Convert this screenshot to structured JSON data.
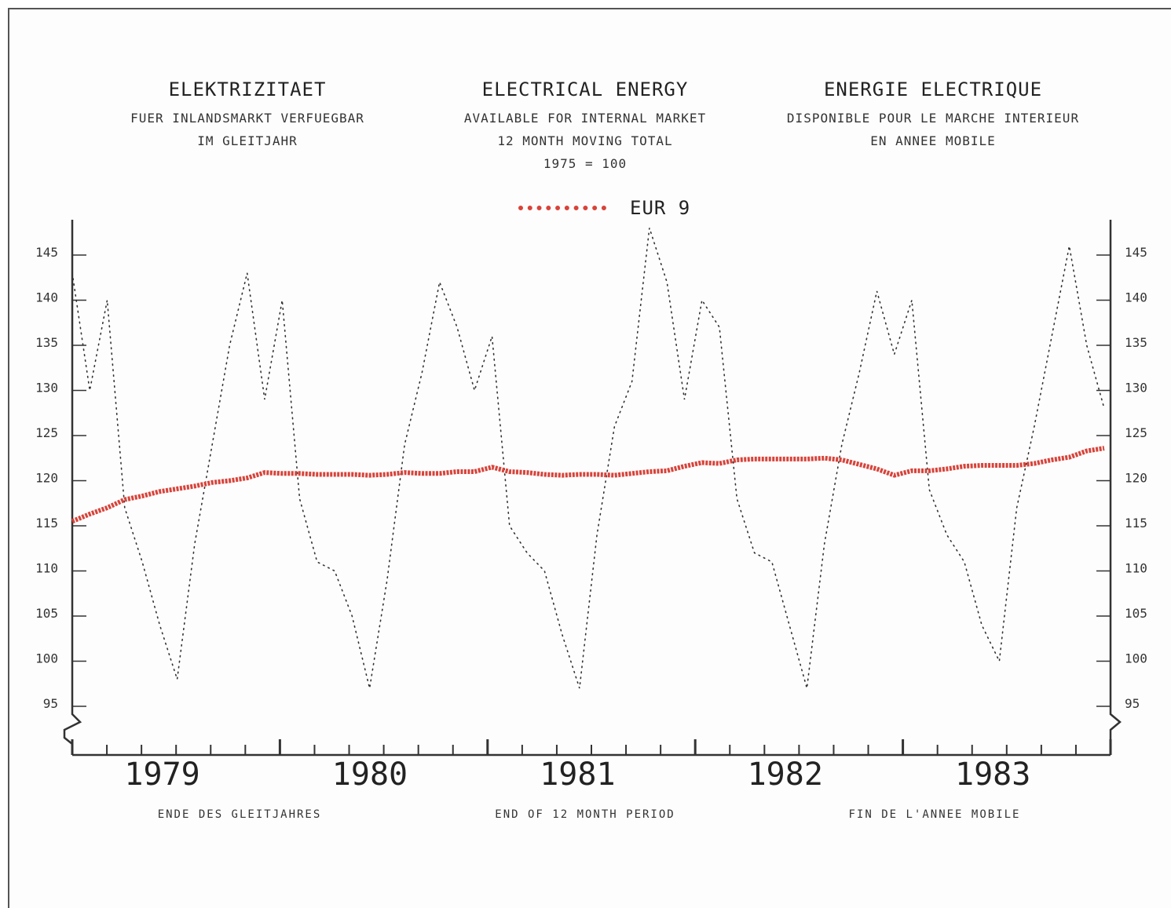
{
  "titles": {
    "de": {
      "title": "ELEKTRIZITAET",
      "line1": "FUER INLANDSMARKT VERFUEGBAR",
      "line2": "IM GLEITJAHR"
    },
    "en": {
      "title": "ELECTRICAL ENERGY",
      "line1": "AVAILABLE FOR INTERNAL MARKET",
      "line2": "12 MONTH MOVING TOTAL",
      "line3": "1975 = 100"
    },
    "fr": {
      "title": "ENERGIE ELECTRIQUE",
      "line1": "DISPONIBLE POUR LE MARCHE INTERIEUR",
      "line2": "EN ANNEE MOBILE"
    }
  },
  "footer": {
    "de": "ENDE DES GLEITJAHRES",
    "en": "END OF 12 MONTH PERIOD",
    "fr": "FIN DE L'ANNEE MOBILE"
  },
  "colors": {
    "series": "#d8433a",
    "monthly": "#333333",
    "axis": "#333333"
  },
  "chart_data": {
    "type": "line",
    "x_unit": "month",
    "x_range": [
      "1978-12",
      "1983-12"
    ],
    "years": [
      "1979",
      "1980",
      "1981",
      "1982",
      "1983"
    ],
    "y_ticks": [
      145,
      140,
      135,
      130,
      125,
      120,
      115,
      110,
      105,
      100,
      95
    ],
    "ylim": [
      93,
      148
    ],
    "y_axis_break": true,
    "legend": {
      "position": "top-center"
    },
    "series": [
      {
        "name": "EUR 9",
        "style": "thick dotted",
        "values": [
          115.5,
          116.3,
          117.0,
          117.9,
          118.3,
          118.8,
          119.1,
          119.4,
          119.8,
          120.0,
          120.3,
          120.9,
          120.8,
          120.8,
          120.7,
          120.7,
          120.7,
          120.6,
          120.7,
          120.9,
          120.8,
          120.8,
          121.0,
          121.0,
          121.5,
          121.0,
          120.9,
          120.7,
          120.6,
          120.7,
          120.7,
          120.6,
          120.8,
          121.0,
          121.1,
          121.6,
          122.0,
          121.9,
          122.3,
          122.4,
          122.4,
          122.4,
          122.4,
          122.5,
          122.3,
          121.8,
          121.3,
          120.6,
          121.1,
          121.1,
          121.3,
          121.6,
          121.7,
          121.7,
          121.7,
          121.9,
          122.3,
          122.6,
          123.3,
          123.6
        ]
      },
      {
        "style": "thin dotted",
        "values": [
          143,
          130,
          140,
          117,
          111,
          104,
          98,
          113,
          124,
          135,
          143,
          129,
          140,
          118,
          111,
          110,
          105,
          97,
          109,
          124,
          132,
          142,
          137,
          130,
          136,
          115,
          112,
          110,
          103,
          97,
          114,
          126,
          131,
          148,
          142,
          129,
          140,
          137,
          118,
          112,
          111,
          104,
          97,
          113,
          124,
          132,
          141,
          134,
          140,
          119,
          114,
          111,
          104,
          100,
          117,
          126,
          136,
          146,
          135,
          128
        ]
      }
    ]
  }
}
